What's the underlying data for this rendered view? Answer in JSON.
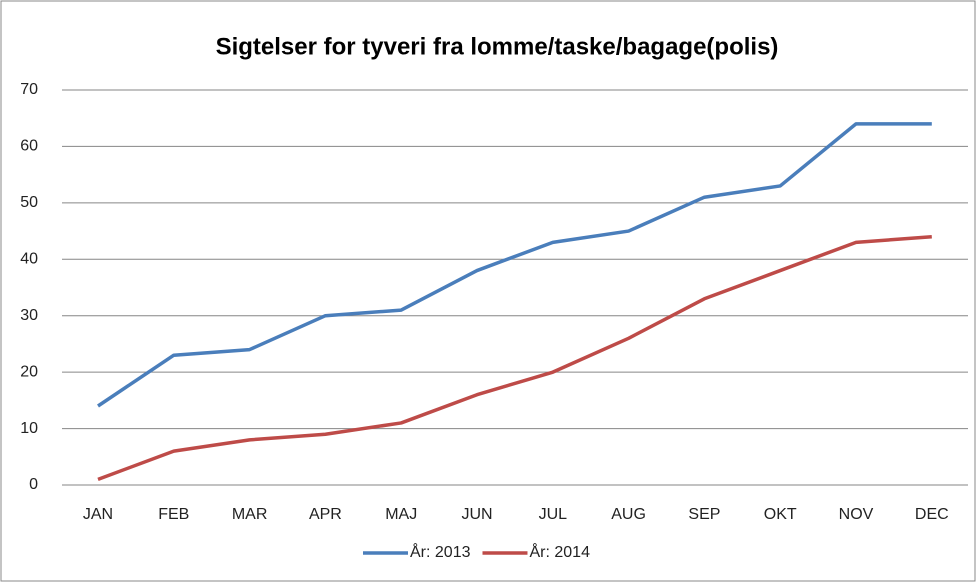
{
  "chart_data": {
    "type": "line",
    "title": "Sigtelser for tyveri fra lomme/taske/bagage(polis)",
    "categories": [
      "JAN",
      "FEB",
      "MAR",
      "APR",
      "MAJ",
      "JUN",
      "JUL",
      "AUG",
      "SEP",
      "OKT",
      "NOV",
      "DEC"
    ],
    "series": [
      {
        "name": "År: 2013",
        "color": "#4a7ebb",
        "values": [
          14,
          23,
          24,
          30,
          31,
          38,
          43,
          45,
          51,
          53,
          64,
          64
        ]
      },
      {
        "name": "År: 2014",
        "color": "#be4b48",
        "values": [
          1,
          6,
          8,
          9,
          11,
          16,
          20,
          26,
          33,
          38,
          43,
          44
        ]
      }
    ],
    "ylim": [
      0,
      70
    ],
    "yticks": [
      0,
      10,
      20,
      30,
      40,
      50,
      60,
      70
    ],
    "grid": true,
    "legend": "bottom"
  }
}
